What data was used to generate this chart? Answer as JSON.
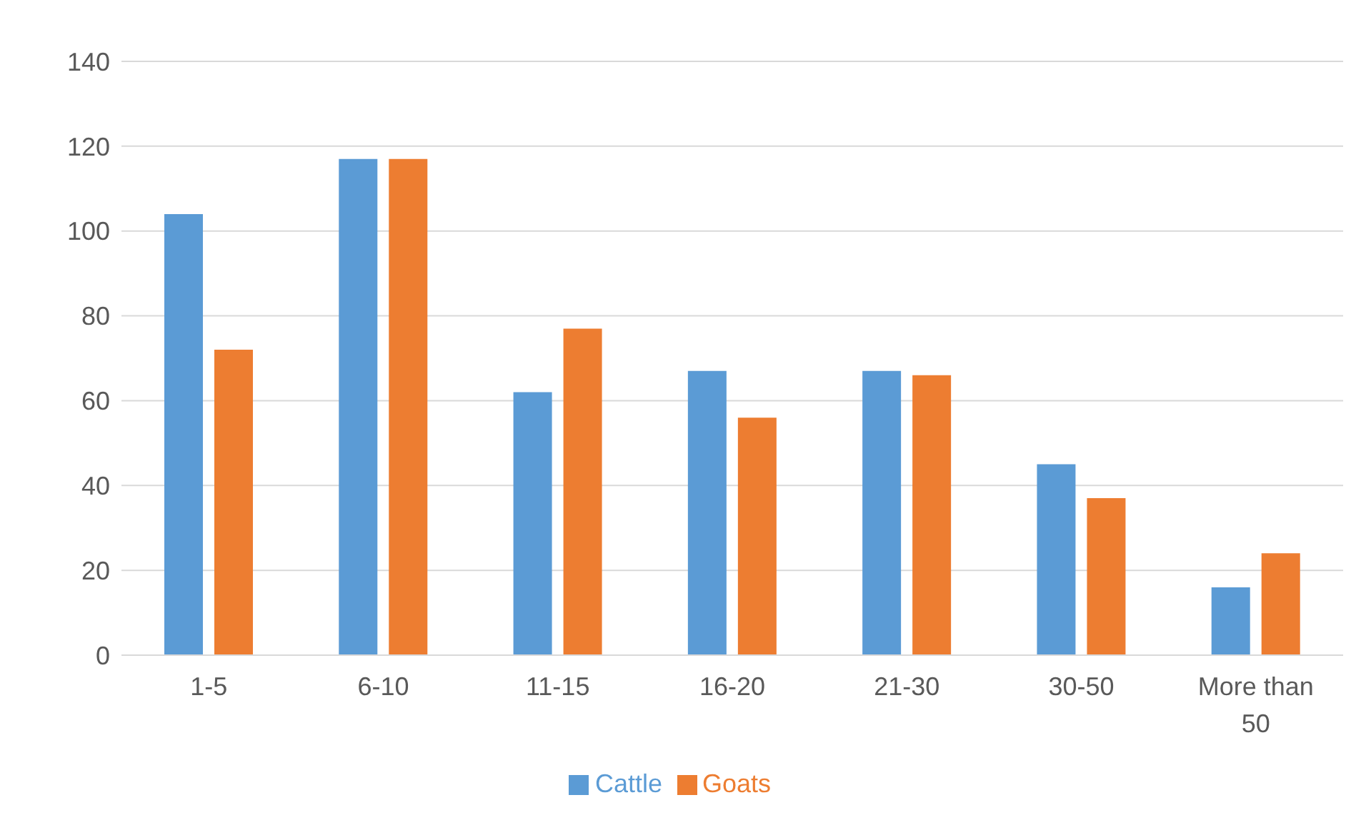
{
  "chart_data": {
    "type": "bar",
    "categories": [
      "1-5",
      "6-10",
      "11-15",
      "16-20",
      "21-30",
      "30-50",
      "More than 50"
    ],
    "series": [
      {
        "name": "Cattle",
        "color": "#5b9bd5",
        "values": [
          104,
          117,
          62,
          67,
          67,
          45,
          16
        ]
      },
      {
        "name": "Goats",
        "color": "#ed7d31",
        "values": [
          72,
          117,
          77,
          56,
          66,
          37,
          24
        ]
      }
    ],
    "ylim": [
      0,
      140
    ],
    "yticks": [
      0,
      20,
      40,
      60,
      80,
      100,
      120,
      140
    ],
    "grid": "y",
    "legend": "bottom"
  }
}
